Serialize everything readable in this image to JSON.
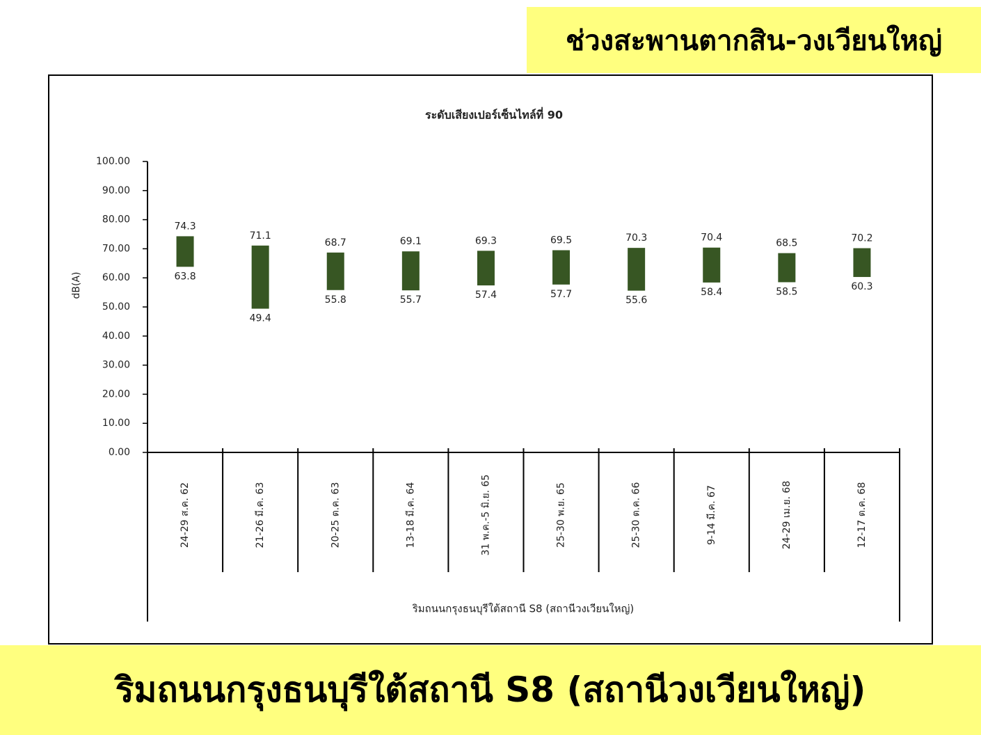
{
  "header": {
    "section": "ช่วงสะพานตากสิน-วงเวียนใหญ่"
  },
  "footer": {
    "title": "ริมถนนกรุงธนบุรีใต้สถานี S8 (สถานีวงเวียนใหญ่)"
  },
  "chart_data": {
    "type": "range_bar",
    "title": "ระดับเสียงเปอร์เซ็นไทล์ที่ 90",
    "y_label": "dB(A)",
    "group_label": "ริมถนนกรุงธนบุรีใต้สถานี S8 (สถานีวงเวียนใหญ่)",
    "categories": [
      "24-29 ส.ค. 62",
      "21-26 มี.ค. 63",
      "20-25 ต.ค. 63",
      "13-18 มี.ค. 64",
      "31 พ.ค.-5 มิ.ย. 65",
      "25-30 พ.ย. 65",
      "25-30 ต.ค. 66",
      "9-14 มี.ค. 67",
      "24-29 เม.ย. 68",
      "12-17 ต.ค. 68"
    ],
    "low": [
      63.8,
      49.4,
      55.8,
      55.7,
      57.4,
      57.7,
      55.6,
      58.4,
      58.5,
      60.3
    ],
    "high": [
      74.3,
      71.1,
      68.7,
      69.1,
      69.3,
      69.5,
      70.3,
      70.4,
      68.5,
      70.2
    ],
    "color": "#375623",
    "ylim": [
      0,
      100
    ],
    "yticks": [
      {
        "value": 0,
        "label": "0.00"
      },
      {
        "value": 10,
        "label": "10.00"
      },
      {
        "value": 20,
        "label": "20.00"
      },
      {
        "value": 30,
        "label": "30.00"
      },
      {
        "value": 40,
        "label": "40.00"
      },
      {
        "value": 50,
        "label": "50.00"
      },
      {
        "value": 60,
        "label": "60.00"
      },
      {
        "value": 70,
        "label": "70.00"
      },
      {
        "value": 80,
        "label": "80.00"
      },
      {
        "value": 90,
        "label": "90.00"
      },
      {
        "value": 100,
        "label": "100.00"
      }
    ]
  }
}
